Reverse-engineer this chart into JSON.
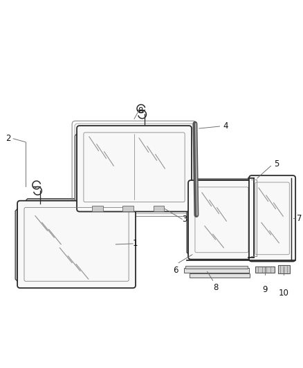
{
  "background_color": "#ffffff",
  "line_color": "#2a2a2a",
  "label_color": "#333333",
  "figsize": [
    4.38,
    5.33
  ],
  "dpi": 100,
  "lw_frame": 1.3,
  "lw_inner": 0.8,
  "lw_leader": 0.6,
  "frame_face": "#f8f8f8",
  "inner_face": "#f0f0f0",
  "edge_face": "#c8c8c8",
  "hatch_color": "#999999",
  "label_fs": 8.5
}
